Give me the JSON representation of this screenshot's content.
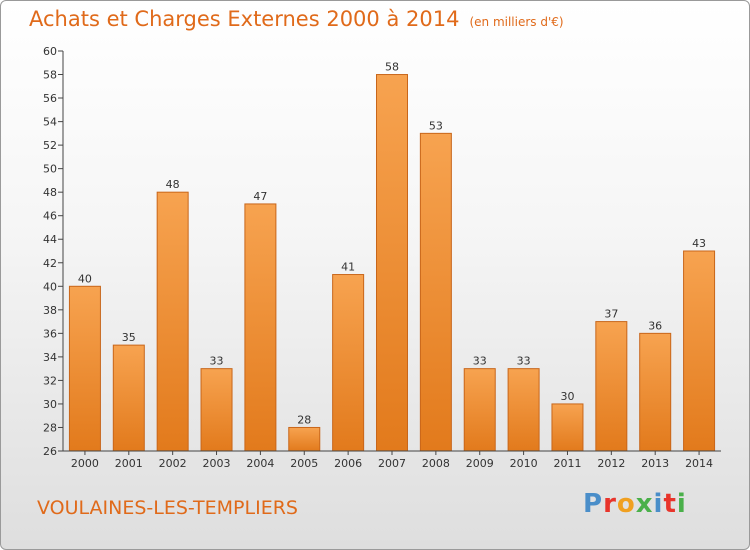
{
  "header": {
    "title": "Achats et Charges Externes 2000 à 2014",
    "subtitle": "(en milliers d'€)"
  },
  "footer": {
    "commune": "VOULAINES-LES-TEMPLIERS",
    "logo_letters": [
      "P",
      "r",
      "o",
      "x",
      "i",
      "t",
      "i"
    ],
    "logo_colors": [
      "#4a8ec9",
      "#e8342b",
      "#f0a020",
      "#4ab04a",
      "#4a8ec9",
      "#e8342b",
      "#4ab04a"
    ]
  },
  "colors": {
    "bar_top": "#f7a350",
    "bar_bottom": "#e27a1c",
    "bar_edge": "#c8661a",
    "axis": "#444444",
    "grid": "#d8d8d8",
    "text": "#333333"
  },
  "chart_data": {
    "type": "bar",
    "title": "Achats et Charges Externes 2000 à 2014",
    "subtitle": "(en milliers d'€)",
    "categories": [
      "2000",
      "2001",
      "2002",
      "2003",
      "2004",
      "2005",
      "2006",
      "2007",
      "2008",
      "2009",
      "2010",
      "2011",
      "2012",
      "2013",
      "2014"
    ],
    "values": [
      40,
      35,
      48,
      33,
      47,
      28,
      41,
      58,
      53,
      33,
      33,
      30,
      37,
      36,
      43
    ],
    "ylim": [
      26,
      60
    ],
    "yticks": [
      26,
      28,
      30,
      32,
      34,
      36,
      38,
      40,
      42,
      44,
      46,
      48,
      50,
      52,
      54,
      56,
      58,
      60
    ],
    "xlabel": "",
    "ylabel": "",
    "grid": false,
    "data_labels": true
  }
}
